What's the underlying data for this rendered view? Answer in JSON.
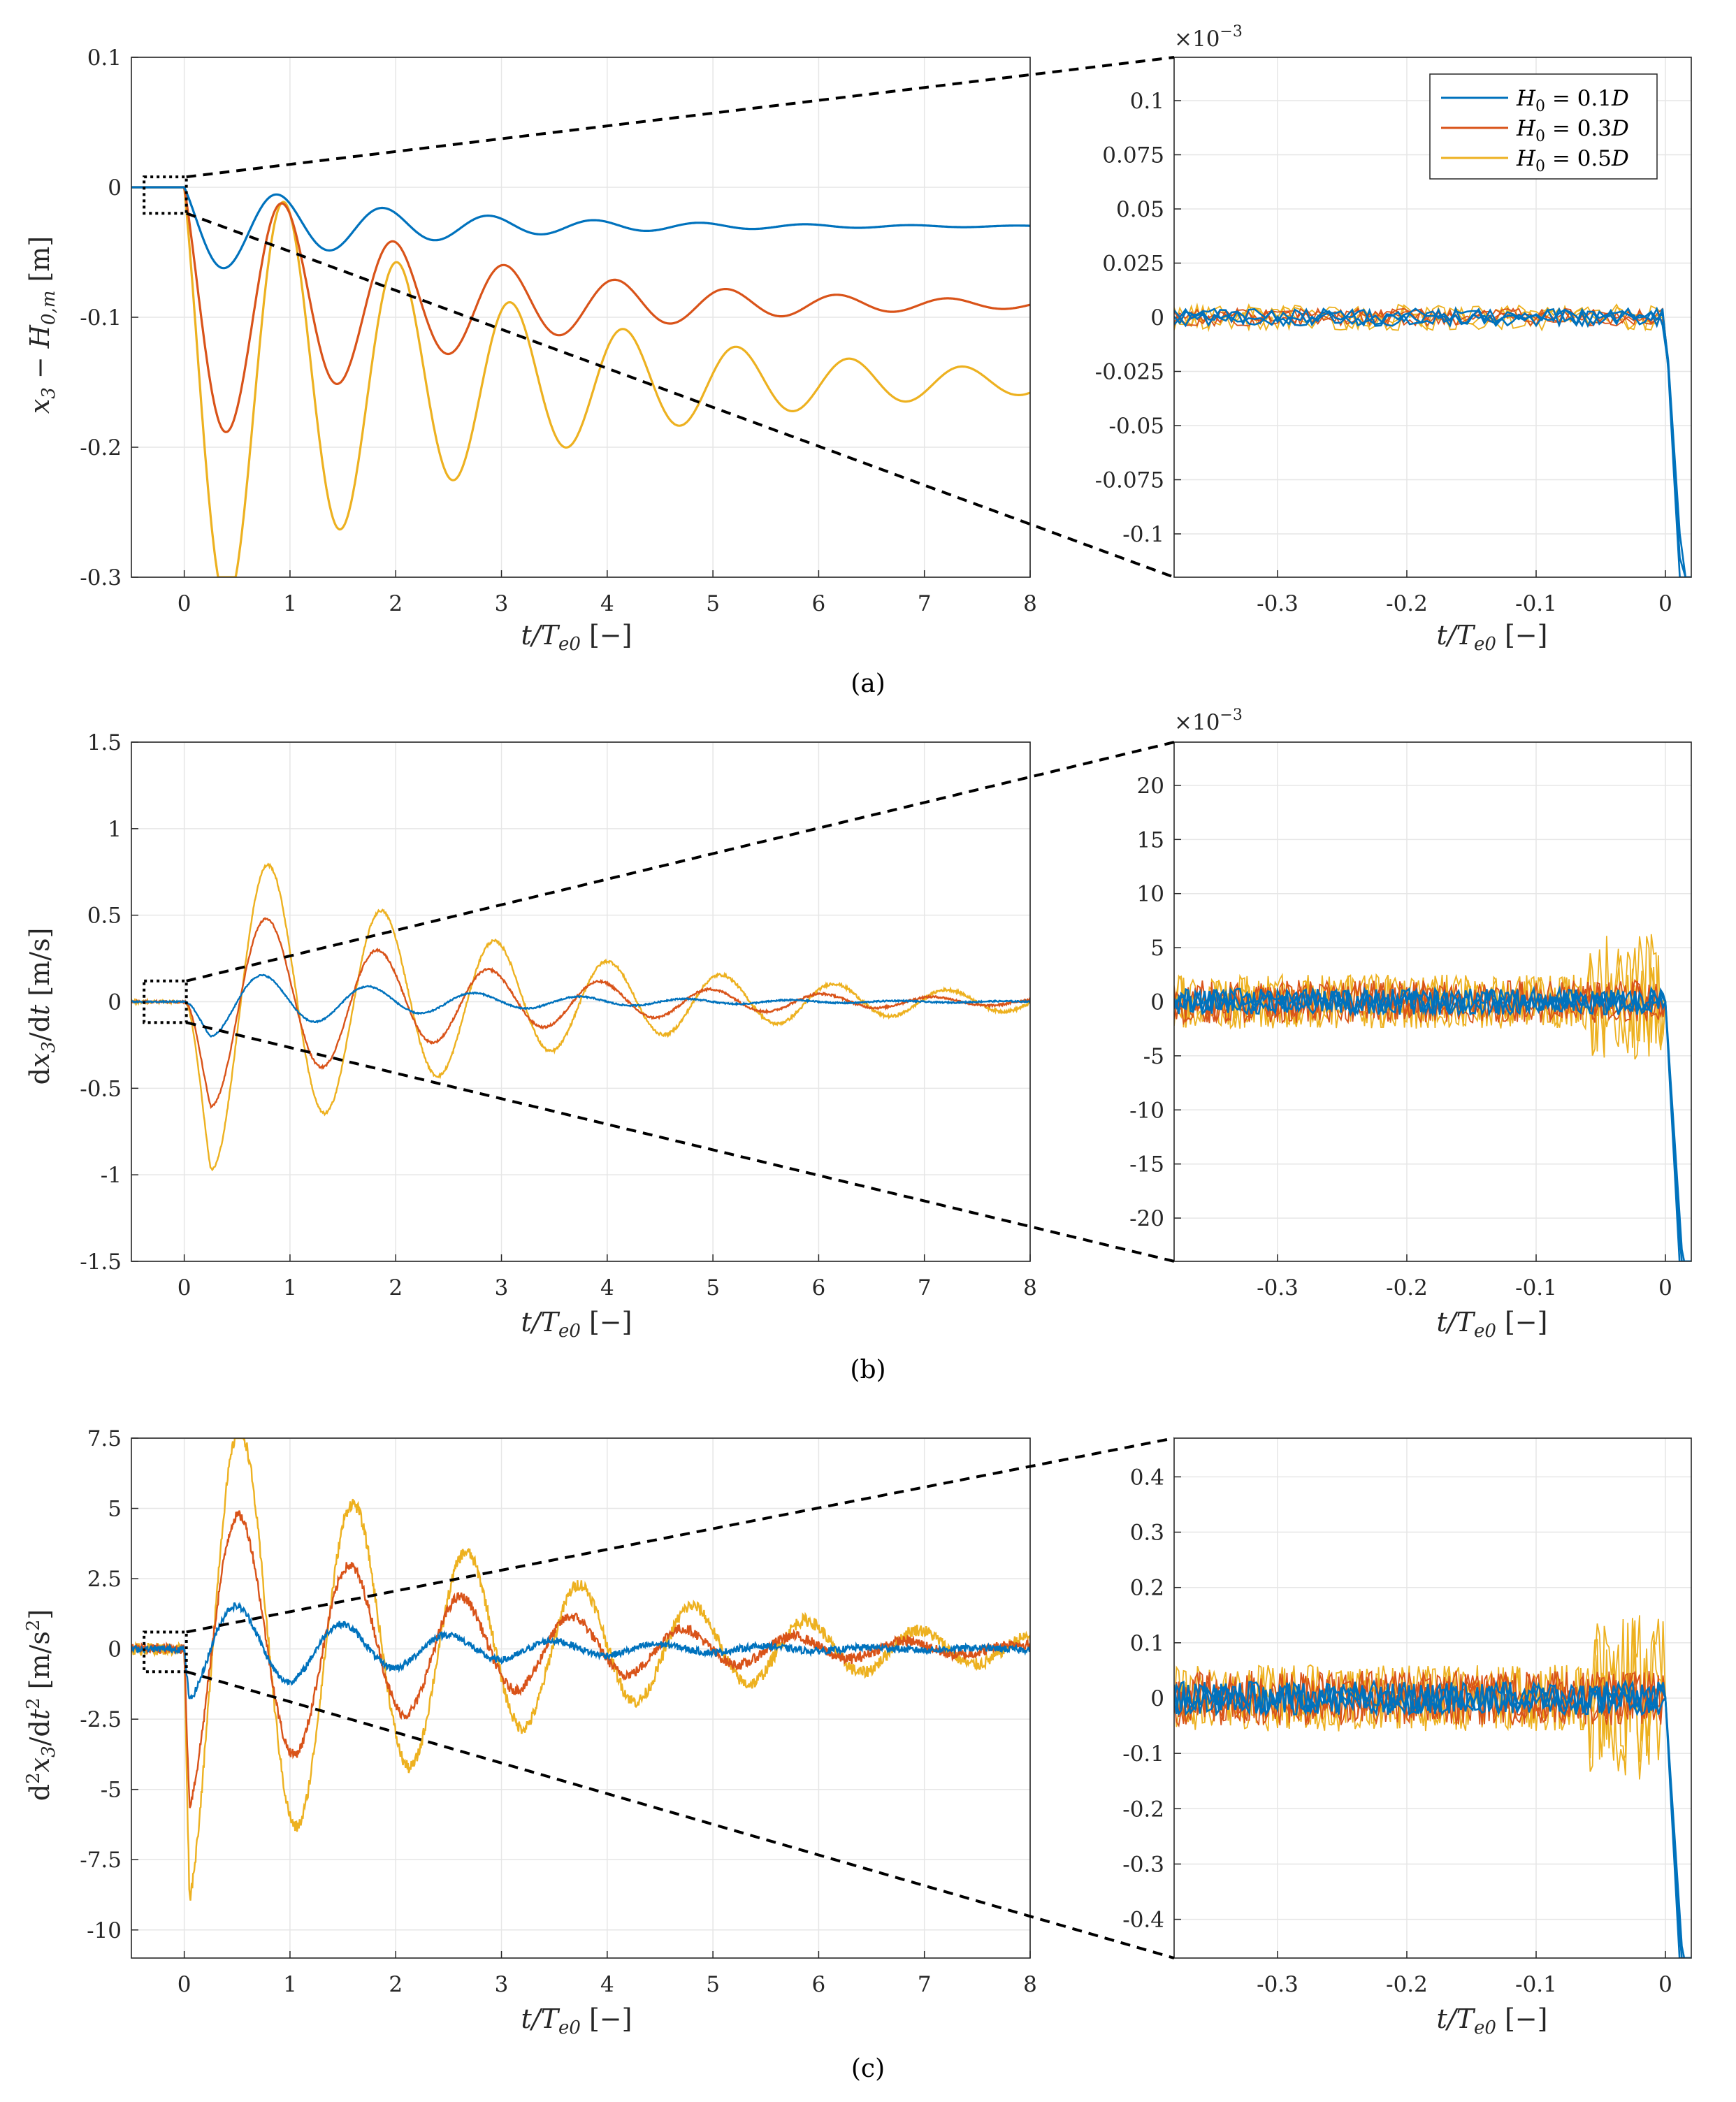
{
  "figure": {
    "captions": [
      "(a)",
      "(b)",
      "(c)"
    ],
    "colors": {
      "h01": "#0072BD",
      "h03": "#D95319",
      "h05": "#EDB120"
    }
  },
  "chart_data": [
    {
      "type": "line",
      "panel": "a-main",
      "title": "",
      "xlabel": "t/Te0 [−]",
      "ylabel": "x3 − H0,m [m]",
      "xlim": [
        -0.5,
        8
      ],
      "ylim": [
        -0.3,
        0.1
      ],
      "xticks": [
        "0",
        "1",
        "2",
        "3",
        "4",
        "5",
        "6",
        "7",
        "8"
      ],
      "yticks": [
        "-0.3",
        "-0.2",
        "-0.1",
        "0",
        "0.1"
      ],
      "series": [
        {
          "name": "H0 = 0.1D",
          "color": "#0072BD",
          "period": 1.0,
          "amp": 0.026,
          "decay": 0.55,
          "final": -0.03,
          "noise": 0
        },
        {
          "name": "H0 = 0.3D",
          "color": "#D95319",
          "period": 1.05,
          "amp": 0.076,
          "decay": 0.45,
          "final": -0.09,
          "noise": 0
        },
        {
          "name": "H0 = 0.5D",
          "color": "#EDB120",
          "period": 1.07,
          "amp": 0.13,
          "decay": 0.38,
          "final": -0.15,
          "noise": 0
        }
      ]
    },
    {
      "type": "line",
      "panel": "a-zoom",
      "xlabel": "t/Te0 [−]",
      "ylabel": "",
      "exponent_label": "×10−3",
      "xlim": [
        -0.38,
        0.02
      ],
      "ylim": [
        -0.12,
        0.12
      ],
      "xticks": [
        "-0.3",
        "-0.2",
        "-0.1",
        "0"
      ],
      "yticks": [
        "-0.1",
        "-0.075",
        "-0.05",
        "-0.025",
        "0",
        "0.025",
        "0.05",
        "0.075",
        "0.1"
      ],
      "legend": {
        "position": "top-right",
        "entries": [
          "H0 = 0.1D",
          "H0 = 0.3D",
          "H0 = 0.5D"
        ]
      },
      "series": [
        {
          "name": "H0 = 0.1D",
          "color": "#0072BD",
          "noise": 0.004
        },
        {
          "name": "H0 = 0.3D",
          "color": "#D95319",
          "noise": 0.004
        },
        {
          "name": "H0 = 0.5D",
          "color": "#EDB120",
          "noise": 0.006
        }
      ]
    },
    {
      "type": "line",
      "panel": "b-main",
      "xlabel": "t/Te0 [−]",
      "ylabel": "dx3/dt [m/s]",
      "xlim": [
        -0.5,
        8
      ],
      "ylim": [
        -1.5,
        1.5
      ],
      "xticks": [
        "0",
        "1",
        "2",
        "3",
        "4",
        "5",
        "6",
        "7",
        "8"
      ],
      "yticks": [
        "-1.5",
        "-1",
        "-0.5",
        "0",
        "0.5",
        "1",
        "1.5"
      ],
      "series": [
        {
          "name": "H0 = 0.1D",
          "color": "#0072BD",
          "period": 1.0,
          "amp": 0.23,
          "decay": 0.55,
          "final": 0,
          "noise": 0.004
        },
        {
          "name": "H0 = 0.3D",
          "color": "#D95319",
          "period": 1.05,
          "amp": 0.68,
          "decay": 0.45,
          "final": 0,
          "noise": 0.006
        },
        {
          "name": "H0 = 0.5D",
          "color": "#EDB120",
          "period": 1.07,
          "amp": 1.07,
          "decay": 0.38,
          "final": 0,
          "noise": 0.008
        }
      ]
    },
    {
      "type": "line",
      "panel": "b-zoom",
      "xlabel": "t/Te0 [−]",
      "ylabel": "",
      "exponent_label": "×10−3",
      "xlim": [
        -0.38,
        0.02
      ],
      "ylim": [
        -24,
        24
      ],
      "xticks": [
        "-0.3",
        "-0.2",
        "-0.1",
        "0"
      ],
      "yticks": [
        "-20",
        "-15",
        "-10",
        "-5",
        "0",
        "5",
        "10",
        "15",
        "20"
      ],
      "series": [
        {
          "name": "H0 = 0.1D",
          "color": "#0072BD",
          "noise": 1.2
        },
        {
          "name": "H0 = 0.3D",
          "color": "#D95319",
          "noise": 2.0
        },
        {
          "name": "H0 = 0.5D",
          "color": "#EDB120",
          "noise": 2.5
        }
      ]
    },
    {
      "type": "line",
      "panel": "c-main",
      "xlabel": "t/Te0 [−]",
      "ylabel": "d2x3/dt2 [m/s2]",
      "xlim": [
        -0.5,
        8
      ],
      "ylim": [
        -11,
        7.5
      ],
      "xticks": [
        "0",
        "1",
        "2",
        "3",
        "4",
        "5",
        "6",
        "7",
        "8"
      ],
      "yticks": [
        "-10",
        "-7.5",
        "-5",
        "-2.5",
        "0",
        "2.5",
        "5",
        "7.5"
      ],
      "series": [
        {
          "name": "H0 = 0.1D",
          "color": "#0072BD",
          "period": 1.0,
          "amp": 2.0,
          "decay": 0.55,
          "final": 0,
          "noise": 0.12
        },
        {
          "name": "H0 = 0.3D",
          "color": "#D95319",
          "period": 1.05,
          "amp": 6.0,
          "decay": 0.45,
          "final": 0,
          "noise": 0.18
        },
        {
          "name": "H0 = 0.5D",
          "color": "#EDB120",
          "period": 1.07,
          "amp": 9.5,
          "decay": 0.38,
          "final": 0,
          "noise": 0.22
        }
      ]
    },
    {
      "type": "line",
      "panel": "c-zoom",
      "xlabel": "t/Te0 [−]",
      "ylabel": "",
      "xlim": [
        -0.38,
        0.02
      ],
      "ylim": [
        -0.47,
        0.47
      ],
      "xticks": [
        "-0.3",
        "-0.2",
        "-0.1",
        "0"
      ],
      "yticks": [
        "-0.4",
        "-0.3",
        "-0.2",
        "-0.1",
        "0",
        "0.1",
        "0.2",
        "0.3",
        "0.4"
      ],
      "series": [
        {
          "name": "H0 = 0.1D",
          "color": "#0072BD",
          "noise": 0.03
        },
        {
          "name": "H0 = 0.3D",
          "color": "#D95319",
          "noise": 0.05
        },
        {
          "name": "H0 = 0.5D",
          "color": "#EDB120",
          "noise": 0.06
        }
      ]
    }
  ]
}
